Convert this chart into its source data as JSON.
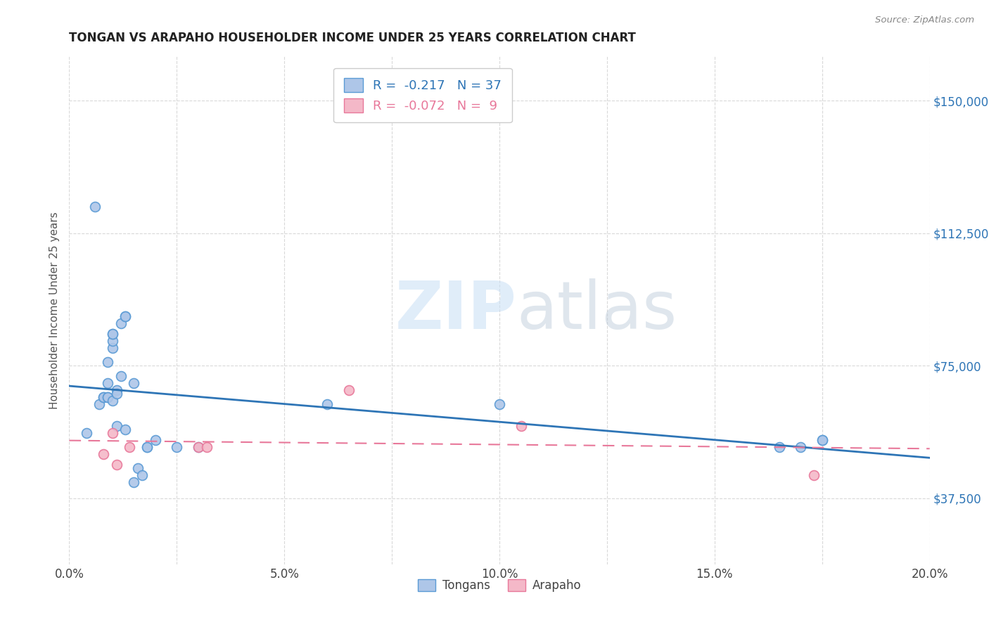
{
  "title": "TONGAN VS ARAPAHO HOUSEHOLDER INCOME UNDER 25 YEARS CORRELATION CHART",
  "source": "Source: ZipAtlas.com",
  "ylabel": "Householder Income Under 25 years",
  "xlim": [
    0.0,
    0.2
  ],
  "ylim": [
    18750,
    162500
  ],
  "yticks": [
    37500,
    75000,
    112500,
    150000
  ],
  "ytick_labels": [
    "$37,500",
    "$75,000",
    "$112,500",
    "$150,000"
  ],
  "xticks": [
    0.0,
    0.05,
    0.1,
    0.15,
    0.2
  ],
  "xtick_labels": [
    "0.0%",
    "5.0%",
    "10.0%",
    "15.0%",
    "20.0%"
  ],
  "background_color": "#ffffff",
  "grid_color": "#d9d9d9",
  "watermark_zip": "ZIP",
  "watermark_atlas": "atlas",
  "tongan_color": "#aec6e8",
  "tongan_edge_color": "#5b9bd5",
  "arapaho_color": "#f4b8c8",
  "arapaho_edge_color": "#e8789a",
  "tongan_line_color": "#2e75b6",
  "arapaho_line_color": "#e8789a",
  "R_tongan": -0.217,
  "N_tongan": 37,
  "R_arapaho": -0.072,
  "N_arapaho": 9,
  "tongan_x": [
    0.004,
    0.006,
    0.007,
    0.008,
    0.008,
    0.009,
    0.009,
    0.009,
    0.009,
    0.01,
    0.01,
    0.01,
    0.01,
    0.01,
    0.011,
    0.011,
    0.011,
    0.012,
    0.012,
    0.013,
    0.013,
    0.013,
    0.015,
    0.015,
    0.016,
    0.017,
    0.018,
    0.018,
    0.02,
    0.025,
    0.03,
    0.06,
    0.1,
    0.165,
    0.17,
    0.175,
    0.175
  ],
  "tongan_y": [
    56000,
    120000,
    64000,
    66000,
    66000,
    66000,
    66000,
    70000,
    76000,
    80000,
    82000,
    84000,
    84000,
    65000,
    68000,
    67000,
    58000,
    72000,
    87000,
    89000,
    89000,
    57000,
    70000,
    42000,
    46000,
    44000,
    52000,
    52000,
    54000,
    52000,
    52000,
    64000,
    64000,
    52000,
    52000,
    54000,
    54000
  ],
  "arapaho_x": [
    0.008,
    0.01,
    0.011,
    0.014,
    0.03,
    0.032,
    0.065,
    0.105,
    0.173
  ],
  "arapaho_y": [
    50000,
    56000,
    47000,
    52000,
    52000,
    52000,
    68000,
    58000,
    44000
  ],
  "scatter_size": 100
}
